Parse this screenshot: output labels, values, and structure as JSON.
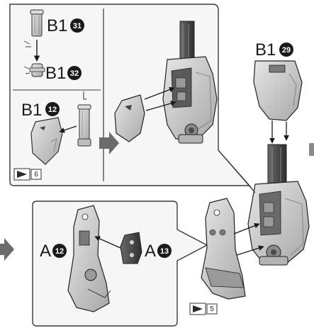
{
  "callouts": {
    "top_left_a": {
      "letter": "B1",
      "number": "31"
    },
    "top_left_b": {
      "letter": "B1",
      "number": "32"
    },
    "middle_left": {
      "letter": "B1",
      "number": "12"
    },
    "top_right": {
      "letter": "B1",
      "number": "29"
    },
    "lower_a": {
      "letter": "A",
      "number": "12"
    },
    "lower_b": {
      "letter": "A",
      "number": "13"
    }
  },
  "step_tags": {
    "upper": "6",
    "lower": "5"
  },
  "colors": {
    "panel_stroke": "#3a3a3a",
    "panel_fill": "#f3f3f3",
    "part_light": "#cfcfcf",
    "part_mid": "#9a9a9a",
    "part_dark": "#4a4a4a",
    "flow_arrow": "#6b6b6b"
  },
  "icons": [
    "flow-arrow-icon",
    "step-flag-icon"
  ]
}
